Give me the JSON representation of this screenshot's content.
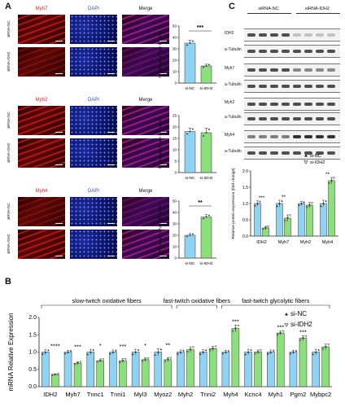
{
  "panel_letters": [
    "A",
    "B",
    "C"
  ],
  "micrographs": {
    "column_headers": [
      {
        "text": "Myh7",
        "color": "#e31a1c"
      },
      {
        "text": "DAPI",
        "color": "#1f4fd8"
      },
      {
        "text": "Merge",
        "color": "#111111"
      }
    ],
    "groups": [
      {
        "marker": "Myh7",
        "marker_color": "#e31a1c",
        "rows": [
          "siRNA-NC",
          "siRNA-IDH2"
        ]
      },
      {
        "marker": "Myh2",
        "marker_color": "#e31a1c",
        "rows": [
          "siRNA-NC",
          "siRNA-IDH2"
        ]
      },
      {
        "marker": "Myh4",
        "marker_color": "#e31a1c",
        "rows": [
          "siRNA-NC",
          "siRNA-IDH2"
        ]
      }
    ],
    "dapi_label": "DAPI",
    "merge_label": "Merge"
  },
  "blot": {
    "headers": [
      "siRNA-NC",
      "siRNA-IDH2"
    ],
    "rows": [
      "IDH2",
      "a-Tubulin",
      "Myh7",
      "a-Tubulin",
      "Myh2",
      "a-Tubulin",
      "Myh4",
      "a-Tubulin"
    ]
  },
  "colors": {
    "si_nc": "#8fd3f4",
    "si_idh2": "#8be07c",
    "red_stain": "#e31a1c",
    "blue_stain": "#1f4fd8"
  },
  "chart_data": [
    {
      "id": "A-myh7",
      "type": "bar",
      "categories": [
        "si-NC",
        "si-IDH2"
      ],
      "values": [
        35,
        15
      ],
      "errors": [
        2.5,
        1.5
      ],
      "ylabel": "Percentage of Type 1° nuclei",
      "ylim": [
        0,
        50
      ],
      "yticks": [
        "0",
        "10",
        "20",
        "30",
        "40",
        "50"
      ],
      "significance": "***"
    },
    {
      "id": "A-myh2",
      "type": "bar",
      "categories": [
        "si-NC",
        "si-IDH2"
      ],
      "values": [
        18,
        17.5
      ],
      "errors": [
        1.5,
        2
      ],
      "ylabel": "Percentage of Type 2a° nuclei",
      "ylim": [
        0,
        25
      ],
      "yticks": [
        "0",
        "5",
        "10",
        "15",
        "20",
        "25"
      ],
      "significance": ""
    },
    {
      "id": "A-myh4",
      "type": "bar",
      "categories": [
        "si-NC",
        "si-IDH2"
      ],
      "values": [
        20,
        36
      ],
      "errors": [
        1.5,
        2
      ],
      "ylabel": "Percentage of Type 2b° nuclei",
      "ylim": [
        0,
        50
      ],
      "yticks": [
        "0",
        "10",
        "20",
        "30",
        "40",
        "50"
      ],
      "significance": "**"
    },
    {
      "id": "C-protein",
      "type": "bar",
      "categories": [
        "IDH2",
        "Myh7",
        "Myh2",
        "Myh4"
      ],
      "series": [
        {
          "name": "si-NC",
          "values": [
            1.0,
            1.0,
            1.0,
            1.0
          ],
          "errors": [
            0.08,
            0.1,
            0.06,
            0.1
          ]
        },
        {
          "name": "si-IDH2",
          "values": [
            0.25,
            0.55,
            0.95,
            1.7
          ],
          "errors": [
            0.05,
            0.1,
            0.08,
            0.1
          ]
        }
      ],
      "ylabel": "Relative protein expression (fold change)",
      "ylim": [
        0,
        2.0
      ],
      "yticks": [
        "0.0",
        "0.5",
        "1.0",
        "1.5",
        "2.0"
      ],
      "significance": [
        "***",
        "**",
        "",
        "**"
      ],
      "legend": "top-right"
    },
    {
      "id": "B-mrna",
      "type": "bar",
      "categories": [
        "IDH2",
        "Myh7",
        "Tnnc1",
        "Tnni1",
        "Myl3",
        "Myoz2",
        "Myh2",
        "Tnni2",
        "Myh4",
        "Kcnc4",
        "Myh1",
        "Pgm2",
        "Mybpc2"
      ],
      "series": [
        {
          "name": "si-NC",
          "values": [
            1.0,
            1.0,
            1.0,
            1.0,
            1.0,
            1.0,
            1.0,
            1.0,
            1.0,
            1.0,
            1.0,
            1.0,
            1.0
          ],
          "errors": [
            0.07,
            0.05,
            0.08,
            0.06,
            0.08,
            0.1,
            0.06,
            0.07,
            0.05,
            0.08,
            0.06,
            0.05,
            0.08
          ]
        },
        {
          "name": "si-IDH2",
          "values": [
            0.35,
            0.68,
            0.75,
            0.75,
            0.78,
            0.78,
            1.07,
            1.1,
            1.68,
            1.0,
            1.55,
            1.4,
            1.15
          ],
          "errors": [
            0.02,
            0.04,
            0.05,
            0.06,
            0.05,
            0.06,
            0.08,
            0.07,
            0.1,
            0.06,
            0.06,
            0.07,
            0.08
          ]
        }
      ],
      "ylabel": "mRNA Relative Expression",
      "ylim": [
        0,
        2.0
      ],
      "yticks": [
        "0.0",
        "0.5",
        "1.0",
        "1.5",
        "2.0"
      ],
      "significance": [
        "****",
        "***",
        "*",
        "***",
        "*",
        "**",
        "",
        "",
        "***",
        "",
        "***",
        "***",
        ""
      ],
      "groups": [
        {
          "label": "slow-twitch oxidative fibers",
          "from": 0,
          "to": 5
        },
        {
          "label": "fast-twitch oxidative fibers",
          "from": 6,
          "to": 7
        },
        {
          "label": "fast-twitch glycolytic fibers",
          "from": 8,
          "to": 12
        }
      ],
      "legend": "top-right"
    }
  ]
}
